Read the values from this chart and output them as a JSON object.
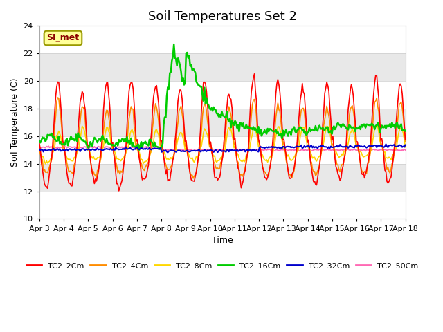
{
  "title": "Soil Temperatures Set 2",
  "xlabel": "Time",
  "ylabel": "Soil Temperature (C)",
  "ylim": [
    10,
    24
  ],
  "xlim_days": [
    0,
    15
  ],
  "yticks": [
    10,
    12,
    14,
    16,
    18,
    20,
    22,
    24
  ],
  "xtick_labels": [
    "Apr 3",
    "Apr 4",
    "Apr 5",
    "Apr 6",
    "Apr 7",
    "Apr 8",
    "Apr 9",
    "Apr 10",
    "Apr 11",
    "Apr 12",
    "Apr 13",
    "Apr 14",
    "Apr 15",
    "Apr 16",
    "Apr 17",
    "Apr 18"
  ],
  "annotation_text": "SI_met",
  "annotation_color": "#8B0000",
  "annotation_bg": "#FFFF99",
  "colors": {
    "TC2_2Cm": "#FF0000",
    "TC2_4Cm": "#FF8C00",
    "TC2_8Cm": "#FFD700",
    "TC2_16Cm": "#00CC00",
    "TC2_32Cm": "#0000CC",
    "TC2_50Cm": "#FF69B4"
  },
  "bg_color": "#E8E8E8",
  "grid_color": "#FFFFFF",
  "title_fontsize": 13,
  "axis_label_fontsize": 9,
  "tick_fontsize": 8
}
